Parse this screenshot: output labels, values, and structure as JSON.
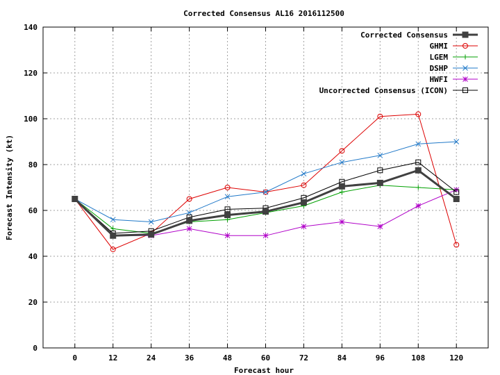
{
  "chart_data": {
    "type": "line",
    "title": "Corrected Consensus  AL16 2016112500",
    "xlabel": "Forecast hour",
    "ylabel": "Forecast Intensity (kt)",
    "xlim": [
      -10,
      130
    ],
    "ylim": [
      0,
      140
    ],
    "x_ticks": [
      0,
      12,
      24,
      36,
      48,
      60,
      72,
      84,
      96,
      108,
      120
    ],
    "y_ticks": [
      0,
      20,
      40,
      60,
      80,
      100,
      120,
      140
    ],
    "grid": true,
    "legend_position": "top-right",
    "x": [
      0,
      12,
      24,
      36,
      48,
      60,
      72,
      84,
      96,
      108,
      120
    ],
    "series": [
      {
        "name": "Corrected Consensus",
        "color": "#404040",
        "marker": "filled-square",
        "bold": true,
        "values": [
          65,
          49,
          49.5,
          55.5,
          58,
          59.5,
          63.5,
          70.5,
          72,
          77.5,
          65
        ]
      },
      {
        "name": "GHMI",
        "color": "#dd0000",
        "marker": "circle",
        "values": [
          65,
          43,
          50,
          65,
          70,
          68,
          71,
          86,
          101,
          102,
          45
        ]
      },
      {
        "name": "LGEM",
        "color": "#00a000",
        "marker": "plus",
        "values": [
          65,
          52,
          50,
          55,
          56,
          59,
          62,
          68,
          71,
          70,
          69
        ]
      },
      {
        "name": "DSHP",
        "color": "#1f78c8",
        "marker": "x",
        "values": [
          65,
          56,
          55,
          59,
          66,
          68,
          76,
          81,
          84,
          89,
          90
        ]
      },
      {
        "name": "HWFI",
        "color": "#b000c8",
        "marker": "star",
        "values": [
          65,
          49,
          49,
          52,
          49,
          49,
          53,
          55,
          53,
          62,
          69
        ]
      },
      {
        "name": "Uncorrected Consensus (ICON)",
        "color": "#000000",
        "marker": "open-square",
        "values": [
          65,
          50,
          51,
          57,
          60.5,
          61,
          65.5,
          72.5,
          77.5,
          81,
          68
        ]
      }
    ]
  }
}
